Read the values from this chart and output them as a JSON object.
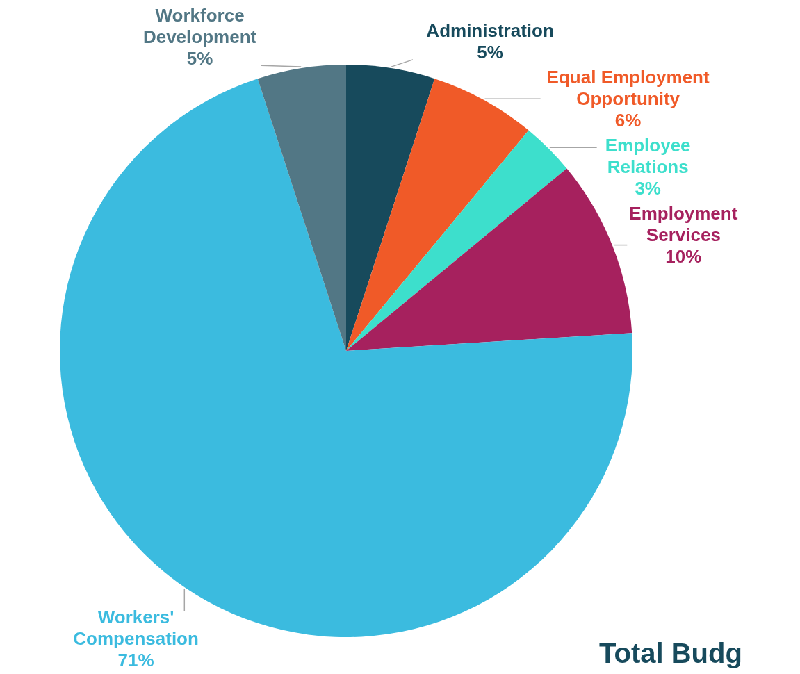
{
  "chart_data": {
    "type": "pie",
    "categories": [
      "Administration",
      "Equal Employment Opportunity",
      "Employee Relations",
      "Employment Services",
      "Workers' Compensation",
      "Workforce Development"
    ],
    "values": [
      5,
      6,
      3,
      10,
      71,
      5
    ],
    "value_labels": [
      "5%",
      "6%",
      "3%",
      "10%",
      "71%",
      "5%"
    ],
    "colors": [
      "#174a5c",
      "#f05a28",
      "#3ddfcc",
      "#a6215e",
      "#3bbbdf",
      "#527785"
    ],
    "annotations": [
      "Total Budg"
    ]
  }
}
